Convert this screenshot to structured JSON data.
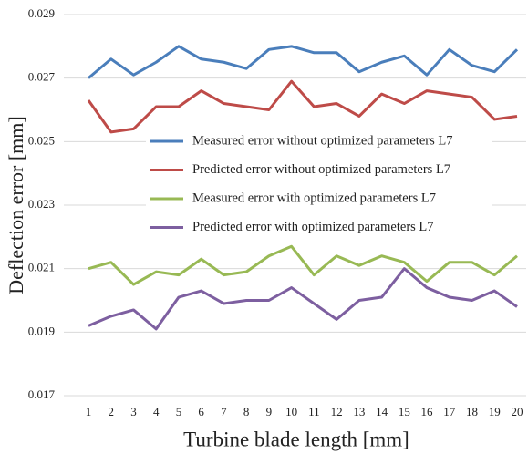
{
  "chart_data": {
    "type": "line",
    "x_label": "Turbine blade length [mm]",
    "y_label": "Deflection error [mm]",
    "categories": [
      1,
      2,
      3,
      4,
      5,
      6,
      7,
      8,
      9,
      10,
      11,
      12,
      13,
      14,
      15,
      16,
      17,
      18,
      19,
      20
    ],
    "series": [
      {
        "name": "Measured error without optimized parameters L7",
        "color": "#4a7ebb",
        "values": [
          0.027,
          0.0276,
          0.0271,
          0.0275,
          0.028,
          0.0276,
          0.0275,
          0.0273,
          0.0279,
          0.028,
          0.0278,
          0.0278,
          0.0272,
          0.0275,
          0.0277,
          0.0271,
          0.0279,
          0.0274,
          0.0272,
          0.0279
        ]
      },
      {
        "name": "Predicted error without optimized parameters L7",
        "color": "#be4b48",
        "values": [
          0.0263,
          0.0253,
          0.0254,
          0.0261,
          0.0261,
          0.0266,
          0.0262,
          0.0261,
          0.026,
          0.0269,
          0.0261,
          0.0262,
          0.0258,
          0.0265,
          0.0262,
          0.0266,
          0.0265,
          0.0264,
          0.0257,
          0.0258
        ]
      },
      {
        "name": "Measured error with optimized parameters L7",
        "color": "#98b954",
        "values": [
          0.021,
          0.0212,
          0.0205,
          0.0209,
          0.0208,
          0.0213,
          0.0208,
          0.0209,
          0.0214,
          0.0217,
          0.0208,
          0.0214,
          0.0211,
          0.0214,
          0.0212,
          0.0206,
          0.0212,
          0.0212,
          0.0208,
          0.0214
        ]
      },
      {
        "name": "Predicted error with optimized parameters L7",
        "color": "#7d5fa0",
        "values": [
          0.0192,
          0.0195,
          0.0197,
          0.0191,
          0.0201,
          0.0203,
          0.0199,
          0.02,
          0.02,
          0.0204,
          0.0199,
          0.0194,
          0.02,
          0.0201,
          0.021,
          0.0204,
          0.0201,
          0.02,
          0.0203,
          0.0198
        ]
      }
    ],
    "ylim": [
      0.017,
      0.029
    ],
    "yticks": [
      0.017,
      0.019,
      0.021,
      0.023,
      0.025,
      0.027,
      0.029
    ],
    "grid": true,
    "legend": "center"
  }
}
